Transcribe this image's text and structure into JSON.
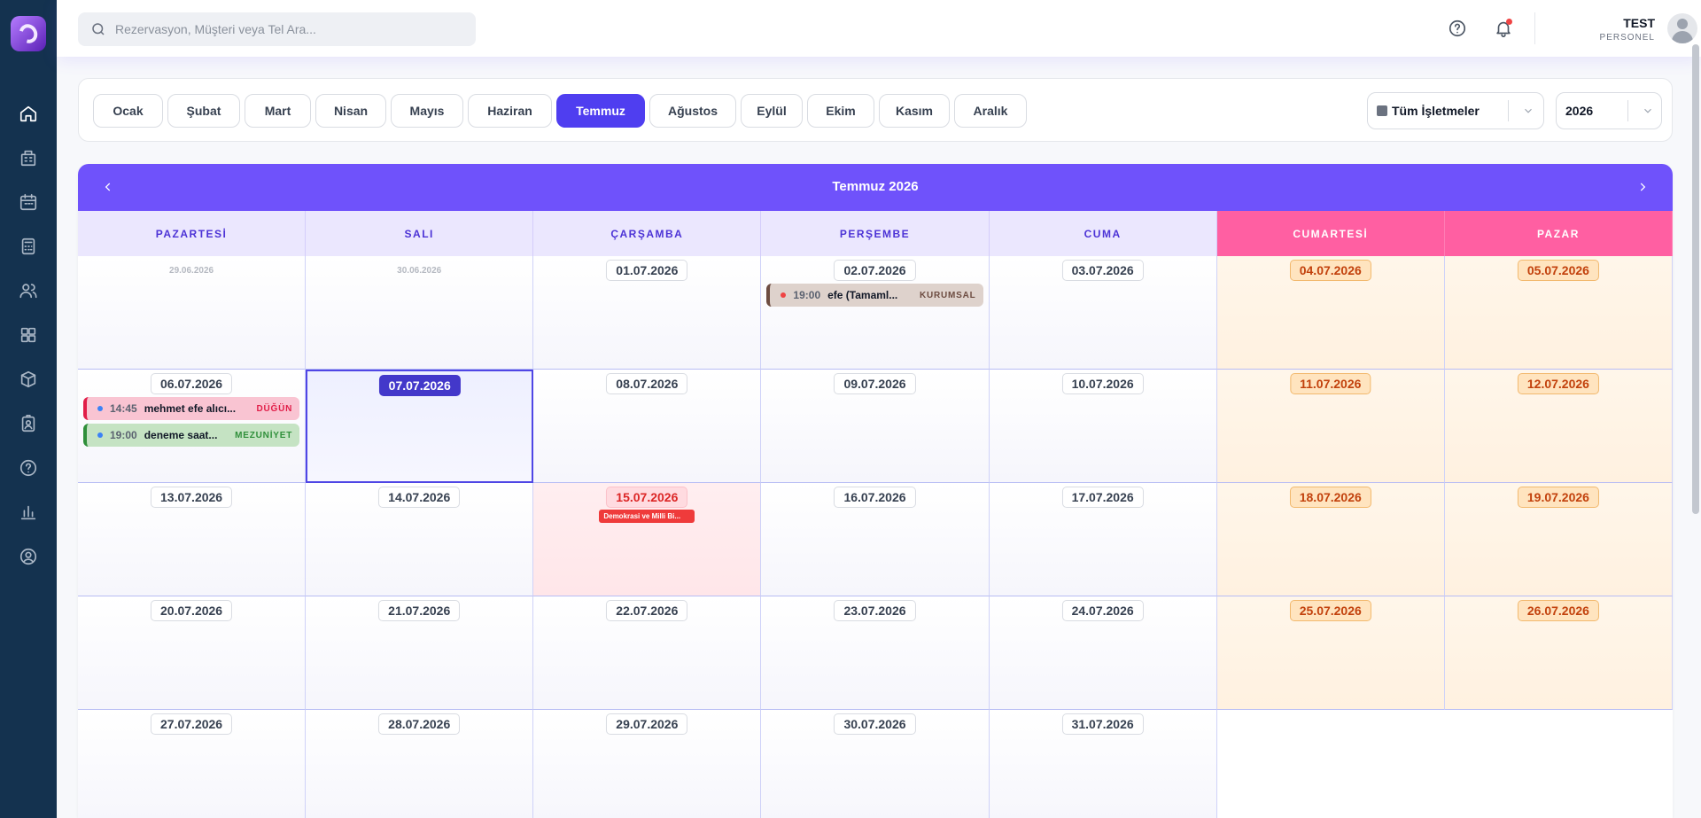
{
  "header": {
    "search_placeholder": "Rezervasyon, Müşteri veya Tel Ara...",
    "user_name": "TEST",
    "user_role": "PERSONEL"
  },
  "months": [
    "Ocak",
    "Şubat",
    "Mart",
    "Nisan",
    "Mayıs",
    "Haziran",
    "Temmuz",
    "Ağustos",
    "Eylül",
    "Ekim",
    "Kasım",
    "Aralık"
  ],
  "active_month": "Temmuz",
  "filters": {
    "business": "Tüm İşletmeler",
    "year": "2026"
  },
  "calendar": {
    "title": "Temmuz 2026",
    "weekdays": [
      "PAZARTESİ",
      "SALI",
      "ÇARŞAMBA",
      "PERŞEMBE",
      "CUMA",
      "CUMARTESİ",
      "PAZAR"
    ],
    "rows": [
      [
        "29.06.2026",
        "30.06.2026",
        "01.07.2026",
        "02.07.2026",
        "03.07.2026",
        "04.07.2026",
        "05.07.2026"
      ],
      [
        "06.07.2026",
        "07.07.2026",
        "08.07.2026",
        "09.07.2026",
        "10.07.2026",
        "11.07.2026",
        "12.07.2026"
      ],
      [
        "13.07.2026",
        "14.07.2026",
        "15.07.2026",
        "16.07.2026",
        "17.07.2026",
        "18.07.2026",
        "19.07.2026"
      ],
      [
        "20.07.2026",
        "21.07.2026",
        "22.07.2026",
        "23.07.2026",
        "24.07.2026",
        "25.07.2026",
        "26.07.2026"
      ],
      [
        "27.07.2026",
        "28.07.2026",
        "29.07.2026",
        "30.07.2026",
        "31.07.2026",
        "",
        ""
      ]
    ],
    "today": "07.07.2026",
    "holiday": {
      "date": "15.07.2026",
      "label": "Demokrasi ve Milli Bi..."
    },
    "events": [
      {
        "date": "02.07.2026",
        "time": "19:00",
        "title": "efe (Tamaml...",
        "tag": "KURUMSAL",
        "type": "corp",
        "dot_color": "#ef4444"
      },
      {
        "date": "06.07.2026",
        "time": "14:45",
        "title": "mehmet efe alıcı...",
        "tag": "DÜĞÜN",
        "type": "wedding",
        "dot_color": "#3b82f6"
      },
      {
        "date": "06.07.2026",
        "time": "19:00",
        "title": "deneme saat...",
        "tag": "MEZUNİYET",
        "type": "grad",
        "dot_color": "#3b82f6"
      }
    ]
  },
  "colors": {
    "primary": "#6f52fb",
    "active_month": "#4f3ef0",
    "weekend_header": "#ff5fa2",
    "sidebar": "#14324f"
  }
}
